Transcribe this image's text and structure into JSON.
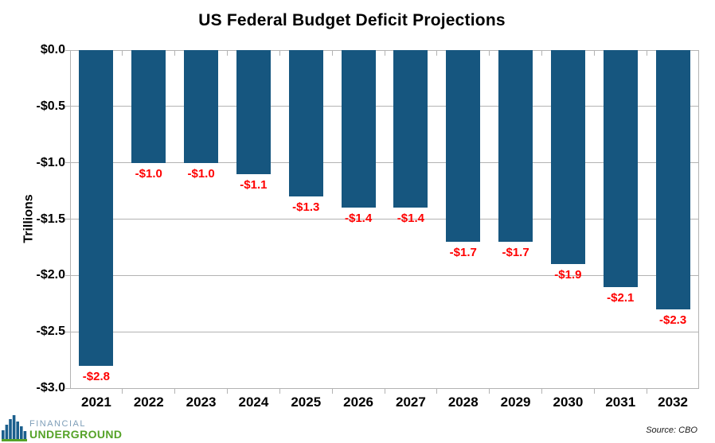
{
  "chart_data": {
    "type": "bar",
    "title": "US Federal Budget Deficit Projections",
    "ylabel": "Trillions",
    "xlabel": "",
    "categories": [
      "2021",
      "2022",
      "2023",
      "2024",
      "2025",
      "2026",
      "2027",
      "2028",
      "2029",
      "2030",
      "2031",
      "2032"
    ],
    "values": [
      -2.8,
      -1.0,
      -1.0,
      -1.1,
      -1.3,
      -1.4,
      -1.4,
      -1.7,
      -1.7,
      -1.9,
      -2.1,
      -2.3
    ],
    "data_labels": [
      "-$2.8",
      "-$1.0",
      "-$1.0",
      "-$1.1",
      "-$1.3",
      "-$1.4",
      "-$1.4",
      "-$1.7",
      "-$1.7",
      "-$1.9",
      "-$2.1",
      "-$2.3"
    ],
    "ylim": [
      -3.0,
      0.0
    ],
    "ytick_labels": [
      "$0.0",
      "-$0.5",
      "-$1.0",
      "-$1.5",
      "-$2.0",
      "-$2.5",
      "-$3.0"
    ],
    "grid": true,
    "legend": "none",
    "source": "Source: CBO"
  },
  "logo": {
    "line1": "FINANCIAL",
    "line2": "UNDERGROUND",
    "icon": "skyline-icon"
  },
  "colors": {
    "bar": "#16567f",
    "data_label": "#ff0000",
    "grid": "#b3b3b3",
    "axis_text": "#000000",
    "logo_financial": "#7e9eb8",
    "logo_underground": "#55a227",
    "logo_buildings": "#1b5f8d",
    "logo_base": "#55a227",
    "background": "#ffffff"
  }
}
